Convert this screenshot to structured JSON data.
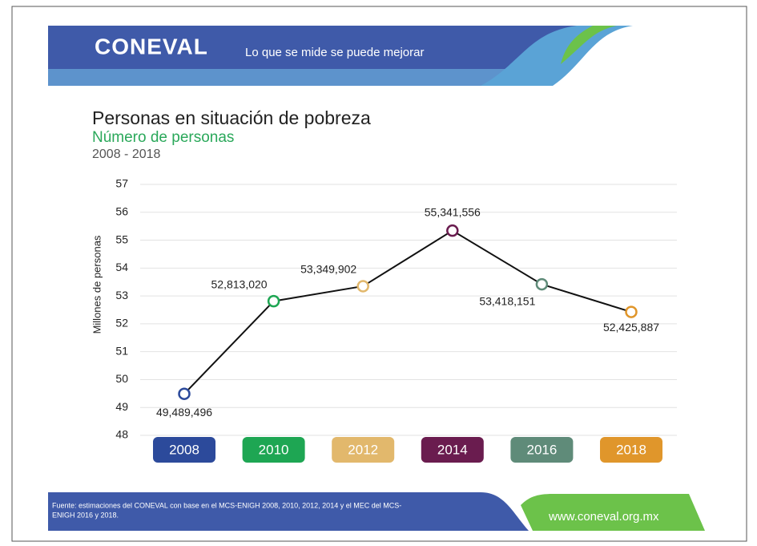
{
  "header": {
    "logo": "CONEVAL",
    "slogan": "Lo que se mide se puede mejorar"
  },
  "chart_data": {
    "type": "line",
    "title": "Personas en situación de pobreza",
    "subtitle": "Número de personas",
    "period": "2008 - 2018",
    "y_label": "Millones de personas",
    "categories": [
      "2008",
      "2010",
      "2012",
      "2014",
      "2016",
      "2018"
    ],
    "category_colors": [
      "#2c4a9b",
      "#1ea653",
      "#e2b86c",
      "#6a1c4f",
      "#5f8b79",
      "#e0962b"
    ],
    "values": [
      49.489496,
      52.81302,
      53.349902,
      55.341556,
      53.418151,
      52.425887
    ],
    "value_labels": [
      "49,489,496",
      "52,813,020",
      "53,349,902",
      "55,341,556",
      "53,418,151",
      "52,425,887"
    ],
    "line_color": "#111111",
    "ylim": [
      48,
      57
    ],
    "yticks": [
      48,
      49,
      50,
      51,
      52,
      53,
      54,
      55,
      56,
      57
    ],
    "grid": true
  },
  "footer": {
    "source": [
      "Fuente: estimaciones del CONEVAL con base en el MCS-ENIGH 2008, 2010, 2012, 2014 y el MEC del MCS-",
      "ENIGH 2016 y 2018."
    ],
    "url": "www.coneval.org.mx"
  }
}
